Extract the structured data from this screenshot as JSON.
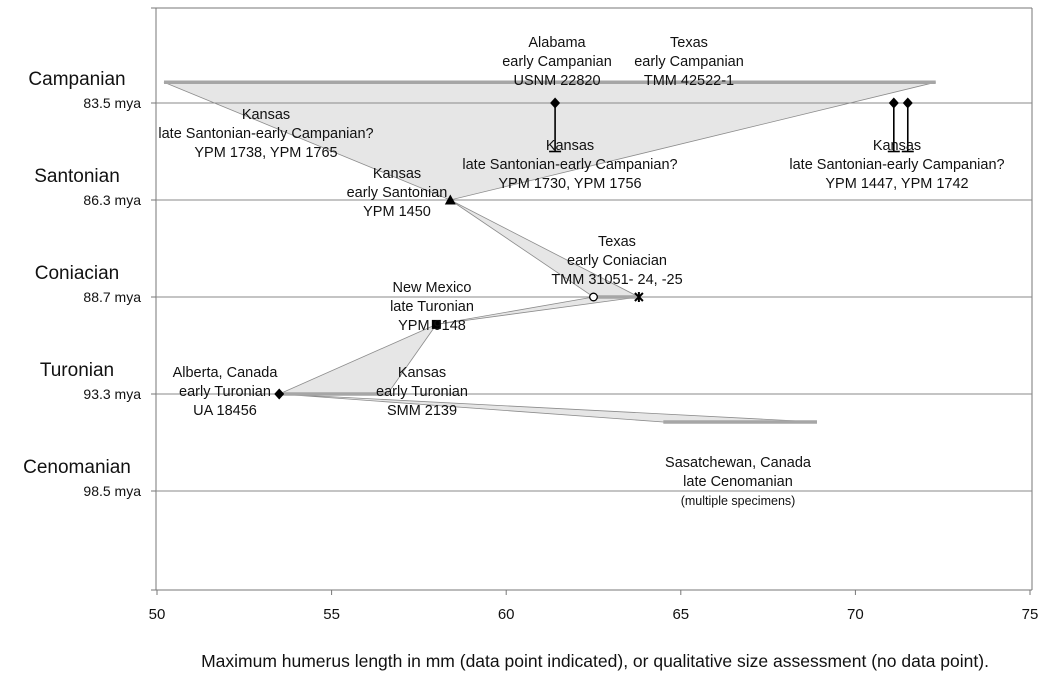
{
  "chart_data": {
    "type": "scatter",
    "xlabel": "Maximum humerus length in mm (data point indicated), or qualitative size assessment (no data point).",
    "x_ticks": [
      "50",
      "55",
      "60",
      "65",
      "70",
      "75"
    ],
    "xlim": [
      50,
      75
    ],
    "ylim": [
      83.5,
      98.5
    ],
    "grid": "horizontal lines at stage boundaries",
    "stages": [
      {
        "name": "Campanian",
        "age_label": "83.5 mya",
        "age": 83.5
      },
      {
        "name": "Santonian",
        "age_label": "86.3 mya",
        "age": 86.3
      },
      {
        "name": "Coniacian",
        "age_label": "88.7 mya",
        "age": 88.7
      },
      {
        "name": "Turonian",
        "age_label": "93.3 mya",
        "age": 93.3
      },
      {
        "name": "Cenomanian",
        "age_label": "98.5 mya",
        "age": 98.5
      }
    ],
    "points": [
      {
        "x": 61.4,
        "y": 83.5,
        "marker": "diamond"
      },
      {
        "x": 71.1,
        "y": 83.5,
        "marker": "diamond"
      },
      {
        "x": 71.5,
        "y": 83.5,
        "marker": "diamond"
      },
      {
        "x": 58.4,
        "y": 86.3,
        "marker": "triangle"
      },
      {
        "x": 62.5,
        "y": 88.7,
        "marker": "open-circle"
      },
      {
        "x": 63.8,
        "y": 88.7,
        "marker": "star"
      },
      {
        "x": 58.0,
        "y": 90.0,
        "marker": "square"
      },
      {
        "x": 53.5,
        "y": 93.3,
        "marker": "diamond"
      }
    ],
    "ranges": [
      {
        "x1": 50.2,
        "x2": 72.3,
        "y": 82.9
      },
      {
        "x1": 62.5,
        "x2": 63.8,
        "y": 88.7
      },
      {
        "x1": 53.5,
        "x2": 56.6,
        "y": 93.3
      },
      {
        "x1": 64.5,
        "x2": 68.9,
        "y": 94.8
      }
    ],
    "error_bars": [
      {
        "x": 61.4,
        "y_top": 83.5,
        "y_bottom": 84.9
      },
      {
        "x": 71.1,
        "y_top": 83.5,
        "y_bottom": 84.9
      },
      {
        "x": 71.5,
        "y_top": 83.5,
        "y_bottom": 84.9
      }
    ],
    "polygons": [
      [
        [
          50.2,
          82.9
        ],
        [
          72.3,
          82.9
        ],
        [
          58.4,
          86.3
        ]
      ],
      [
        [
          58.4,
          86.3
        ],
        [
          62.5,
          88.7
        ],
        [
          63.8,
          88.7
        ]
      ],
      [
        [
          62.5,
          88.7
        ],
        [
          63.8,
          88.7
        ],
        [
          58.0,
          90.0
        ]
      ],
      [
        [
          58.0,
          90.0
        ],
        [
          53.5,
          93.3
        ],
        [
          56.6,
          93.3
        ]
      ],
      [
        [
          53.5,
          93.3
        ],
        [
          64.5,
          94.8
        ],
        [
          68.9,
          94.8
        ]
      ]
    ],
    "annotations": [
      {
        "lines": [
          "Alabama",
          "early Campanian",
          "USNM 22820"
        ]
      },
      {
        "lines": [
          "Texas",
          "early Campanian",
          "TMM 42522-1"
        ]
      },
      {
        "lines": [
          "Kansas",
          "late Santonian-early Campanian?",
          "YPM 1738, YPM 1765"
        ]
      },
      {
        "lines": [
          "Kansas",
          "late Santonian-early Campanian?",
          "YPM 1730, YPM 1756"
        ]
      },
      {
        "lines": [
          "Kansas",
          "late Santonian-early Campanian?",
          "YPM 1447, YPM 1742"
        ]
      },
      {
        "lines": [
          "Kansas",
          "early Santonian",
          "YPM 1450"
        ]
      },
      {
        "lines": [
          "Texas",
          "early Coniacian",
          "TMM 31051- 24, -25"
        ]
      },
      {
        "lines": [
          "New Mexico",
          "late Turonian",
          "YPM 9148"
        ]
      },
      {
        "lines": [
          "Alberta, Canada",
          "early Turonian",
          "UA 18456"
        ]
      },
      {
        "lines": [
          "Kansas",
          "early Turonian",
          "SMM 2139"
        ]
      },
      {
        "lines": [
          "Sasatchewan, Canada",
          "late Cenomanian",
          "(multiple specimens)"
        ]
      }
    ],
    "colors": {
      "band": "#e6e6e6",
      "band_edge": "#8c8c8c",
      "range": "#a6a6a6",
      "grid": "#8a8a8a",
      "marker": "#000000"
    }
  }
}
